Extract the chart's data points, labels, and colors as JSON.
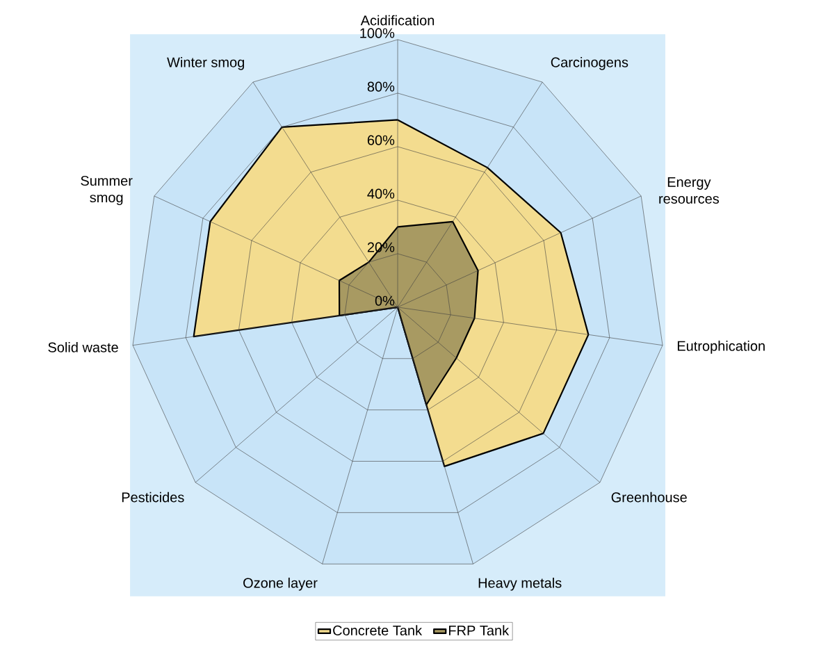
{
  "chart_data": {
    "type": "radar",
    "categories": [
      "Acidification",
      "Carcinogens",
      "Energy resources",
      "Eutrophication",
      "Greenhouse",
      "Heavy metals",
      "Ozone layer",
      "Pesticides",
      "Solid waste",
      "Summer smog",
      "Winter smog"
    ],
    "series": [
      {
        "name": "Concrete Tank",
        "color": "#f3dc8f",
        "values": [
          70,
          62,
          67,
          72,
          72,
          62,
          0,
          0,
          77,
          77,
          80
        ]
      },
      {
        "name": "FRP Tank",
        "color": "#a89a62",
        "values": [
          30,
          38,
          33,
          29,
          29,
          38,
          0,
          0,
          22,
          24,
          20
        ]
      }
    ],
    "ylim": [
      0,
      100
    ],
    "yticks": [
      {
        "value": 0,
        "label": "0%"
      },
      {
        "value": 20,
        "label": "20%"
      },
      {
        "value": 40,
        "label": "40%"
      },
      {
        "value": 60,
        "label": "60%"
      },
      {
        "value": 80,
        "label": "80%"
      },
      {
        "value": 100,
        "label": "100%"
      }
    ],
    "grid": true,
    "legend": "bottom"
  }
}
